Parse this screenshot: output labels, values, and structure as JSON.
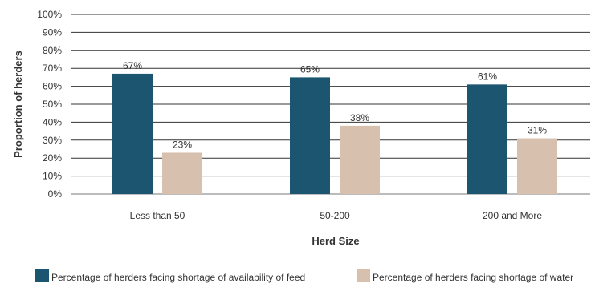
{
  "chart_data": {
    "type": "bar",
    "categories": [
      "Less than 50",
      "50-200",
      "200 and More"
    ],
    "series": [
      {
        "name": "Percentage of herders facing shortage of availability of feed",
        "values": [
          67,
          65,
          61
        ],
        "labels": [
          "67%",
          "65%",
          "61%"
        ],
        "color": "#1b5570"
      },
      {
        "name": "Percentage of herders facing shortage of water",
        "values": [
          23,
          38,
          31
        ],
        "labels": [
          "23%",
          "38%",
          "31%"
        ],
        "color": "#d7c0ad"
      }
    ],
    "xlabel": "Herd Size",
    "ylabel": "Proportion of herders",
    "ylim": [
      0,
      100
    ],
    "yticks": [
      0,
      10,
      20,
      30,
      40,
      50,
      60,
      70,
      80,
      90,
      100
    ],
    "ytick_labels": [
      "0%",
      "10%",
      "20%",
      "30%",
      "40%",
      "50%",
      "60%",
      "70%",
      "80%",
      "90%",
      "100%"
    ],
    "grid": true,
    "legend_position": "bottom"
  }
}
